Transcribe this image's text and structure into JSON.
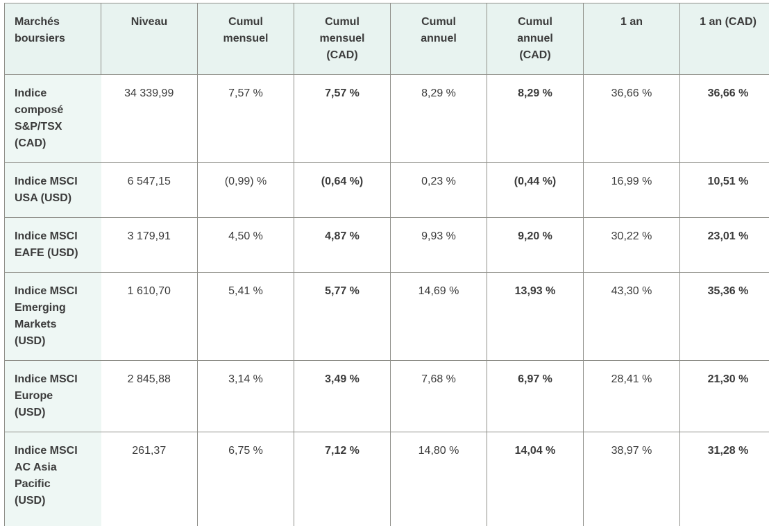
{
  "table": {
    "title": "Marchés boursiers",
    "headers": [
      "Marchés boursiers",
      "Niveau",
      "Cumul mensuel",
      "Cumul mensuel (CAD)",
      "Cumul annuel",
      "Cumul annuel (CAD)",
      "1 an",
      "1 an (CAD)"
    ],
    "rows": [
      {
        "cells": [
          "Indice composé S&P/TSX (CAD)",
          "34 339,99",
          "7,57 %",
          "7,57 %",
          "8,29 %",
          "8,29 %",
          "36,66 %",
          "36,66 %"
        ]
      },
      {
        "cells": [
          "Indice MSCI USA (USD)",
          "6 547,15",
          "(0,99) %",
          "(0,64 %)",
          "0,23 %",
          "(0,44 %)",
          "16,99 %",
          "10,51 %"
        ]
      },
      {
        "cells": [
          "Indice MSCI EAFE (USD)",
          "3 179,91",
          "4,50 %",
          "4,87 %",
          "9,93 %",
          "9,20 %",
          "30,22 %",
          "23,01 %"
        ]
      },
      {
        "cells": [
          "Indice MSCI Emerging Markets (USD)",
          "1 610,70",
          "5,41 %",
          "5,77 %",
          "14,69 %",
          "13,93 %",
          "43,30 %",
          "35,36 %"
        ]
      },
      {
        "cells": [
          "Indice MSCI Europe (USD)",
          "2 845,88",
          "3,14 %",
          "3,49 %",
          "7,68 %",
          "6,97 %",
          "28,41 %",
          "21,30 %"
        ]
      },
      {
        "cells": [
          "Indice MSCI AC Asia Pacific (USD)",
          "261,37",
          "6,75 %",
          "7,12 %",
          "14,80 %",
          "14,04 %",
          "38,97 %",
          "31,28 %"
        ]
      }
    ]
  },
  "colors": {
    "header_bg": "#e8f3f0",
    "row_label_bg": "#eef7f4",
    "border": "#8f8f89",
    "text": "#3b3b3b",
    "cell_bg": "#ffffff"
  }
}
